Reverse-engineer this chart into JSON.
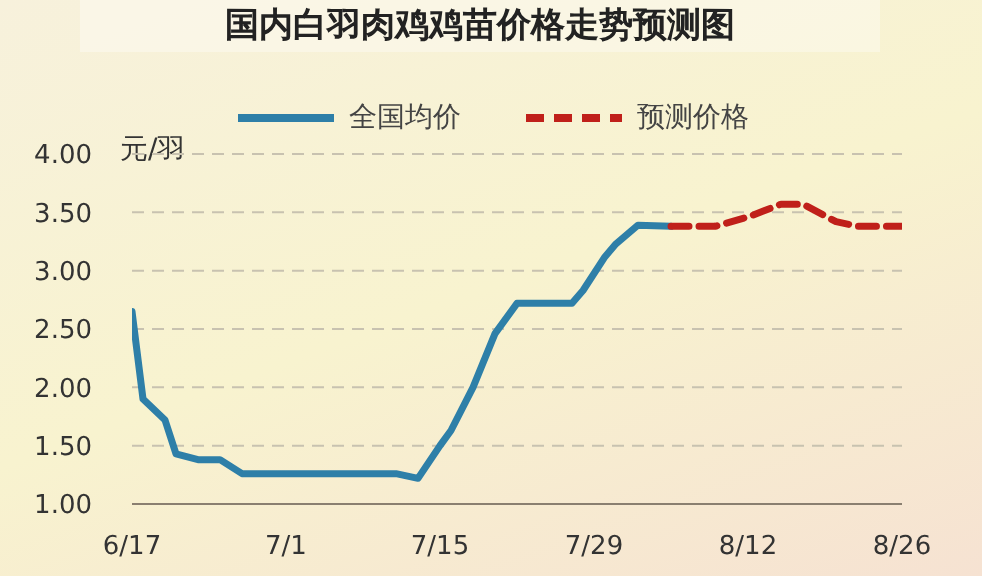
{
  "chart_data": {
    "type": "line",
    "title": "国内白羽肉鸡鸡苗价格走势预测图",
    "ylabel": "元/羽",
    "series": [
      {
        "name": "全国均价",
        "color": "#2e7fa8",
        "line_style": "solid",
        "x": [
          "--06-17",
          "--06-18",
          "--06-20",
          "--06-21",
          "--06-23",
          "--06-25",
          "--06-27",
          "--07-11",
          "--07-13",
          "--07-15",
          "--07-16",
          "--07-18",
          "--07-20",
          "--07-22",
          "--07-27",
          "--07-28",
          "--07-30",
          "--07-31",
          "--08-02",
          "--08-05"
        ],
        "values": [
          2.65,
          1.9,
          1.72,
          1.43,
          1.38,
          1.38,
          1.26,
          1.26,
          1.22,
          1.5,
          1.63,
          2.0,
          2.46,
          2.72,
          2.72,
          2.83,
          3.12,
          3.23,
          3.39,
          3.38
        ]
      },
      {
        "name": "预测价格",
        "color": "#c0201a",
        "line_style": "dashed",
        "x": [
          "--08-05",
          "--08-09",
          "--08-12",
          "--08-15",
          "--08-17",
          "--08-20",
          "--08-22",
          "--08-26"
        ],
        "values": [
          3.38,
          3.38,
          3.46,
          3.57,
          3.57,
          3.42,
          3.38,
          3.38
        ]
      }
    ],
    "xlim": [
      "--06-17",
      "--08-26"
    ],
    "xticks": [
      {
        "value": "--06-17",
        "label": "6/17"
      },
      {
        "value": "--07-01",
        "label": "7/1"
      },
      {
        "value": "--07-15",
        "label": "7/15"
      },
      {
        "value": "--07-29",
        "label": "7/29"
      },
      {
        "value": "--08-12",
        "label": "8/12"
      },
      {
        "value": "--08-26",
        "label": "8/26"
      }
    ],
    "ylim": [
      1.0,
      4.0
    ],
    "yticks": [
      {
        "value": 1.0,
        "label": "1.00"
      },
      {
        "value": 1.5,
        "label": "1.50"
      },
      {
        "value": 2.0,
        "label": "2.00"
      },
      {
        "value": 2.5,
        "label": "2.50"
      },
      {
        "value": 3.0,
        "label": "3.00"
      },
      {
        "value": 3.5,
        "label": "3.50"
      },
      {
        "value": 4.0,
        "label": "4.00"
      }
    ],
    "grid": "y",
    "legend": "top",
    "marker": "none"
  }
}
